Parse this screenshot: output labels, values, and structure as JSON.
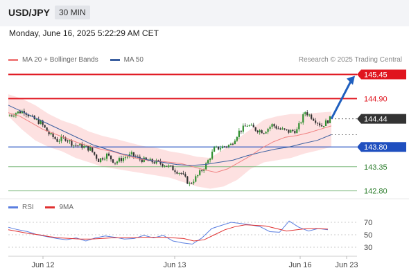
{
  "header": {
    "symbol": "USD/JPY",
    "timeframe": "30 MIN",
    "datetime": "Monday, June 16, 2025 5:22:29 AM CET"
  },
  "legend": {
    "ma20_label": "MA 20 + Bollinger Bands",
    "ma50_label": "MA 50",
    "credit": "Research © 2025 Trading Central"
  },
  "rsi_legend": {
    "rsi_label": "RSI",
    "ma_label": "9MA"
  },
  "colors": {
    "ma20": "#f08080",
    "ma50": "#3a5fa0",
    "band_fill": "#fde1e1",
    "resistance": "#e0141e",
    "support": "#1f4fbf",
    "target_green": "#7cb87c",
    "current": "#333333",
    "arrow": "#1f5fbf",
    "candle_up": "#2f8f2f",
    "candle_down": "#333333",
    "rsi": "#5a7ee0",
    "rsi_ma": "#e03030"
  },
  "chart_data": [
    {
      "type": "candlestick",
      "title": "USD/JPY",
      "timeframe": "30 MIN",
      "ylim": [
        142.7,
        145.6
      ],
      "x_ticks": [
        "Jun 12",
        "Jun 13",
        "Jun 16",
        "Jun 23"
      ],
      "indicators": [
        "MA 20 + Bollinger Bands",
        "MA 50"
      ],
      "levels": [
        {
          "value": 145.45,
          "label": "145.45",
          "kind": "resistance",
          "style": "red-box"
        },
        {
          "value": 144.9,
          "label": "144.90",
          "kind": "resistance",
          "style": "red-text"
        },
        {
          "value": 144.44,
          "label": "144.44",
          "kind": "current",
          "style": "dark-box"
        },
        {
          "value": 143.8,
          "label": "143.80",
          "kind": "pivot",
          "style": "blue-box"
        },
        {
          "value": 143.35,
          "label": "143.35",
          "kind": "support",
          "style": "green-text"
        },
        {
          "value": 142.8,
          "label": "142.80",
          "kind": "support",
          "style": "green-text"
        }
      ],
      "forecast_target": 145.45,
      "price_path": [
        144.5,
        144.58,
        144.62,
        144.45,
        144.35,
        144.1,
        143.95,
        144.0,
        143.85,
        143.82,
        143.75,
        143.5,
        143.62,
        143.45,
        143.55,
        143.62,
        143.52,
        143.48,
        143.45,
        143.4,
        143.3,
        143.2,
        142.95,
        143.15,
        143.4,
        143.75,
        143.8,
        143.85,
        144.15,
        144.3,
        144.2,
        144.15,
        144.3,
        144.2,
        144.15,
        144.18,
        144.6,
        144.45,
        144.28,
        144.44
      ],
      "ma20_path": [
        144.58,
        144.5,
        144.35,
        144.2,
        144.1,
        144.0,
        143.9,
        143.82,
        143.75,
        143.7,
        143.62,
        143.55,
        143.5,
        143.48,
        143.45,
        143.42,
        143.35,
        143.28,
        143.22,
        143.3,
        143.45,
        143.6,
        143.78,
        143.92,
        144.02,
        144.06,
        144.12,
        144.2,
        144.28
      ],
      "ma50_path": [
        144.75,
        144.6,
        144.45,
        144.3,
        144.15,
        144.0,
        143.85,
        143.75,
        143.65,
        143.58,
        143.5,
        143.45,
        143.4,
        143.38,
        143.4,
        143.45,
        143.5,
        143.6,
        143.68,
        143.75,
        143.8,
        143.88,
        143.95,
        144.08
      ],
      "bb_upper": [
        145.0,
        144.9,
        144.75,
        144.55,
        144.4,
        144.3,
        144.15,
        144.05,
        143.98,
        143.9,
        143.82,
        143.78,
        143.7,
        143.65,
        143.58,
        143.55,
        143.75,
        143.98,
        144.2,
        144.42,
        144.5,
        144.55,
        144.55,
        144.58,
        144.6
      ],
      "bb_lower": [
        144.5,
        144.2,
        143.95,
        143.8,
        143.7,
        143.55,
        143.45,
        143.35,
        143.3,
        143.25,
        143.2,
        143.15,
        143.1,
        143.0,
        142.9,
        142.85,
        142.9,
        143.05,
        143.3,
        143.45,
        143.5,
        143.55,
        143.65,
        143.72,
        143.8
      ]
    },
    {
      "type": "line",
      "title": "RSI",
      "series": [
        {
          "name": "RSI",
          "values": [
            62,
            58,
            55,
            50,
            47,
            44,
            42,
            45,
            40,
            45,
            48,
            46,
            43,
            44,
            49,
            45,
            49,
            40,
            37,
            35,
            45,
            60,
            65,
            70,
            68,
            66,
            63,
            55,
            54,
            72,
            62,
            56,
            60,
            58
          ]
        },
        {
          "name": "9MA",
          "values": [
            58,
            55,
            52,
            50,
            47,
            45,
            44,
            43,
            43,
            44,
            45,
            45,
            45,
            46,
            46,
            46,
            45,
            44,
            40,
            42,
            50,
            58,
            63,
            66,
            65,
            64,
            60,
            56,
            58,
            60,
            60,
            59
          ]
        }
      ],
      "yticks": [
        70,
        50,
        30
      ],
      "ylim": [
        20,
        80
      ]
    }
  ]
}
